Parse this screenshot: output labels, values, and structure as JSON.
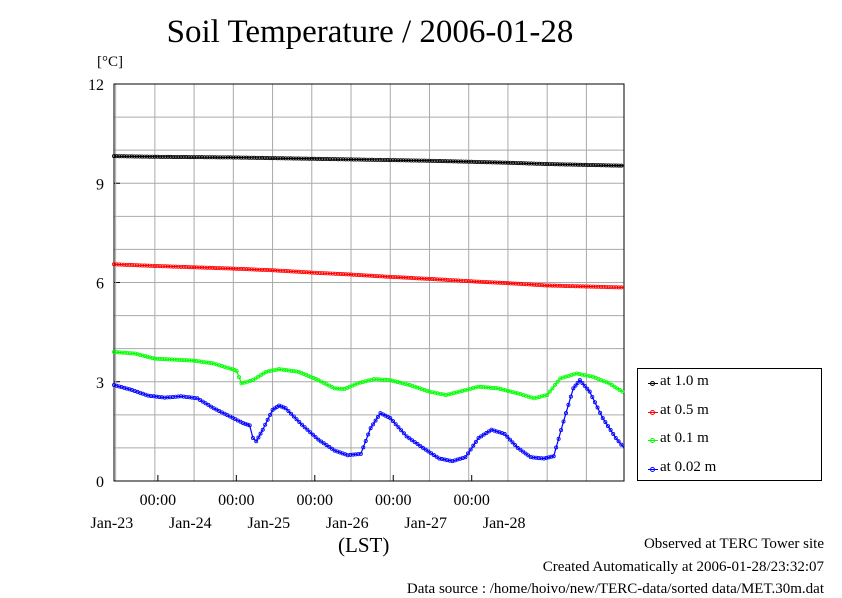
{
  "chart_data": {
    "type": "line",
    "title": "Soil Temperature / 2006-01-28",
    "unit": "[°C]",
    "xlabel": "(LST)",
    "ylim": [
      0,
      12
    ],
    "yticks": [
      0,
      3,
      6,
      9,
      12
    ],
    "xlim": [
      "2006-01-22T11:30",
      "2006-01-28T23:30"
    ],
    "x_time_ticks": [
      {
        "t": "2006-01-23T00:00",
        "label": "00:00"
      },
      {
        "t": "2006-01-24T00:00",
        "label": "00:00"
      },
      {
        "t": "2006-01-25T00:00",
        "label": "00:00"
      },
      {
        "t": "2006-01-26T00:00",
        "label": "00:00"
      },
      {
        "t": "2006-01-27T00:00",
        "label": "00:00"
      }
    ],
    "x_date_ticks": [
      {
        "t": "2006-01-23T00:00",
        "label": "Jan-23"
      },
      {
        "t": "2006-01-24T00:00",
        "label": "Jan-24"
      },
      {
        "t": "2006-01-25T00:00",
        "label": "Jan-25"
      },
      {
        "t": "2006-01-26T00:00",
        "label": "Jan-26"
      },
      {
        "t": "2006-01-27T00:00",
        "label": "Jan-27"
      },
      {
        "t": "2006-01-28T00:00",
        "label": "Jan-28"
      }
    ],
    "grid": true,
    "legend_position": "right",
    "series": [
      {
        "name": "at 1.0 m",
        "color": "#000000",
        "points": [
          [
            "2006-01-22T11:30",
            9.82
          ],
          [
            "2006-01-23T00:00",
            9.8
          ],
          [
            "2006-01-23T12:00",
            9.79
          ],
          [
            "2006-01-24T00:00",
            9.78
          ],
          [
            "2006-01-24T12:00",
            9.76
          ],
          [
            "2006-01-25T00:00",
            9.74
          ],
          [
            "2006-01-25T12:00",
            9.72
          ],
          [
            "2006-01-26T00:00",
            9.7
          ],
          [
            "2006-01-26T12:00",
            9.68
          ],
          [
            "2006-01-27T00:00",
            9.65
          ],
          [
            "2006-01-27T12:00",
            9.62
          ],
          [
            "2006-01-28T00:00",
            9.58
          ],
          [
            "2006-01-28T23:30",
            9.53
          ]
        ]
      },
      {
        "name": "at 0.5 m",
        "color": "#ff0000",
        "points": [
          [
            "2006-01-22T11:30",
            6.55
          ],
          [
            "2006-01-23T00:00",
            6.5
          ],
          [
            "2006-01-23T12:00",
            6.46
          ],
          [
            "2006-01-24T00:00",
            6.42
          ],
          [
            "2006-01-24T12:00",
            6.37
          ],
          [
            "2006-01-25T00:00",
            6.3
          ],
          [
            "2006-01-25T12:00",
            6.24
          ],
          [
            "2006-01-26T00:00",
            6.17
          ],
          [
            "2006-01-26T12:00",
            6.11
          ],
          [
            "2006-01-27T00:00",
            6.04
          ],
          [
            "2006-01-27T12:00",
            5.98
          ],
          [
            "2006-01-28T00:00",
            5.91
          ],
          [
            "2006-01-28T23:30",
            5.85
          ]
        ]
      },
      {
        "name": "at 0.1 m",
        "color": "#00ff00",
        "points": [
          [
            "2006-01-22T11:30",
            3.9
          ],
          [
            "2006-01-22T18:00",
            3.85
          ],
          [
            "2006-01-23T00:00",
            3.7
          ],
          [
            "2006-01-23T06:00",
            3.67
          ],
          [
            "2006-01-23T12:00",
            3.64
          ],
          [
            "2006-01-23T18:00",
            3.55
          ],
          [
            "2006-01-23T23:00",
            3.4
          ],
          [
            "2006-01-24T01:00",
            3.33
          ],
          [
            "2006-01-24T02:30",
            2.95
          ],
          [
            "2006-01-24T06:00",
            3.05
          ],
          [
            "2006-01-24T10:00",
            3.3
          ],
          [
            "2006-01-24T14:00",
            3.38
          ],
          [
            "2006-01-24T20:00",
            3.3
          ],
          [
            "2006-01-25T02:00",
            3.05
          ],
          [
            "2006-01-25T07:00",
            2.8
          ],
          [
            "2006-01-25T10:00",
            2.78
          ],
          [
            "2006-01-25T14:00",
            2.95
          ],
          [
            "2006-01-25T19:00",
            3.08
          ],
          [
            "2006-01-26T00:00",
            3.05
          ],
          [
            "2006-01-26T06:00",
            2.9
          ],
          [
            "2006-01-26T12:00",
            2.7
          ],
          [
            "2006-01-26T17:00",
            2.6
          ],
          [
            "2006-01-26T22:00",
            2.72
          ],
          [
            "2006-01-27T03:00",
            2.85
          ],
          [
            "2006-01-27T09:00",
            2.8
          ],
          [
            "2006-01-27T15:00",
            2.65
          ],
          [
            "2006-01-27T20:00",
            2.5
          ],
          [
            "2006-01-28T00:00",
            2.6
          ],
          [
            "2006-01-28T04:00",
            3.1
          ],
          [
            "2006-01-28T09:00",
            3.25
          ],
          [
            "2006-01-28T14:00",
            3.15
          ],
          [
            "2006-01-28T19:00",
            2.95
          ],
          [
            "2006-01-28T23:00",
            2.7
          ],
          [
            "2006-01-28T23:30",
            2.7
          ]
        ]
      },
      {
        "name": "at 0.02 m",
        "color": "#0000ff",
        "points": [
          [
            "2006-01-22T11:30",
            2.9
          ],
          [
            "2006-01-22T17:00",
            2.75
          ],
          [
            "2006-01-22T22:00",
            2.58
          ],
          [
            "2006-01-23T03:00",
            2.52
          ],
          [
            "2006-01-23T08:00",
            2.56
          ],
          [
            "2006-01-23T13:00",
            2.5
          ],
          [
            "2006-01-23T18:00",
            2.2
          ],
          [
            "2006-01-23T23:00",
            1.95
          ],
          [
            "2006-01-24T03:00",
            1.75
          ],
          [
            "2006-01-24T05:00",
            1.68
          ],
          [
            "2006-01-24T06:00",
            1.3
          ],
          [
            "2006-01-24T07:00",
            1.2
          ],
          [
            "2006-01-24T09:00",
            1.55
          ],
          [
            "2006-01-24T12:00",
            2.15
          ],
          [
            "2006-01-24T14:00",
            2.28
          ],
          [
            "2006-01-24T16:00",
            2.2
          ],
          [
            "2006-01-24T21:00",
            1.7
          ],
          [
            "2006-01-25T02:00",
            1.25
          ],
          [
            "2006-01-25T07:00",
            0.92
          ],
          [
            "2006-01-25T11:00",
            0.78
          ],
          [
            "2006-01-25T15:00",
            0.82
          ],
          [
            "2006-01-25T18:00",
            1.6
          ],
          [
            "2006-01-25T21:00",
            2.05
          ],
          [
            "2006-01-26T00:00",
            1.9
          ],
          [
            "2006-01-26T05:00",
            1.35
          ],
          [
            "2006-01-26T10:00",
            1.0
          ],
          [
            "2006-01-26T15:00",
            0.68
          ],
          [
            "2006-01-26T19:00",
            0.6
          ],
          [
            "2006-01-26T23:00",
            0.72
          ],
          [
            "2006-01-27T03:00",
            1.3
          ],
          [
            "2006-01-27T07:00",
            1.55
          ],
          [
            "2006-01-27T11:00",
            1.42
          ],
          [
            "2006-01-27T15:00",
            1.0
          ],
          [
            "2006-01-27T19:00",
            0.72
          ],
          [
            "2006-01-27T23:00",
            0.68
          ],
          [
            "2006-01-28T02:00",
            0.75
          ],
          [
            "2006-01-28T05:00",
            1.8
          ],
          [
            "2006-01-28T08:00",
            2.8
          ],
          [
            "2006-01-28T10:00",
            3.05
          ],
          [
            "2006-01-28T13:00",
            2.7
          ],
          [
            "2006-01-28T17:00",
            1.9
          ],
          [
            "2006-01-28T21:00",
            1.3
          ],
          [
            "2006-01-28T23:30",
            1.0
          ]
        ]
      }
    ]
  },
  "notes": {
    "observed": "Observed at TERC Tower site",
    "created": "Created Automatically at 2006-01-28/23:32:07",
    "source": "Data source : /home/hoivo/new/TERC-data/sorted  data/MET.30m.dat"
  }
}
